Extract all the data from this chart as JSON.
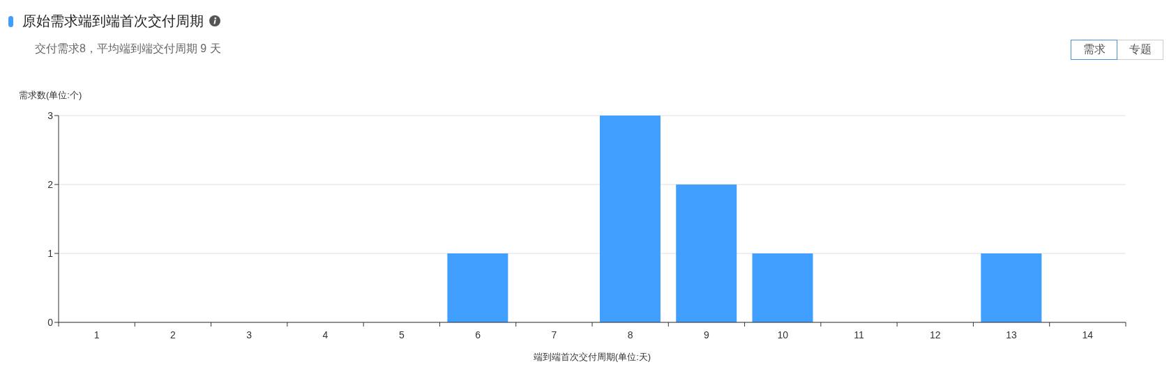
{
  "chart_data": {
    "type": "bar",
    "title": "原始需求端到端首次交付周期",
    "subtitle": "交付需求8，平均端到端交付周期 9 天",
    "annotations": [
      "需求",
      "专题"
    ],
    "xlabel": "端到端首次交付周期(单位:天)",
    "ylabel": "需求数(单位:个)",
    "categories": [
      "1",
      "2",
      "3",
      "4",
      "5",
      "6",
      "7",
      "8",
      "9",
      "10",
      "11",
      "12",
      "13",
      "14"
    ],
    "values": [
      0,
      0,
      0,
      0,
      0,
      1,
      0,
      3,
      2,
      1,
      0,
      0,
      1,
      0
    ],
    "color": "#409eff",
    "ylim": [
      0,
      3
    ],
    "yticks": [
      0,
      1,
      2,
      3
    ],
    "grid": "y"
  }
}
